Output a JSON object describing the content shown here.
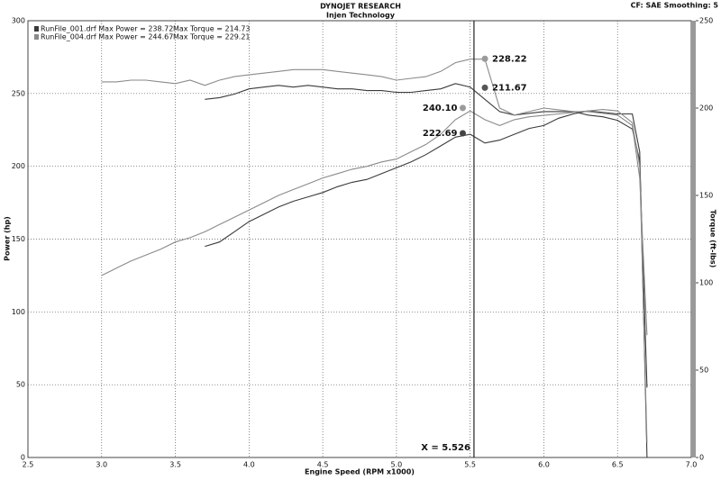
{
  "chart_data": {
    "type": "line",
    "title": "DYNOJET RESEARCH",
    "subtitle": "Injen Technology",
    "corner_note": "CF: SAE  Smoothing: 5",
    "x_label": "Engine Speed (RPM x1000)",
    "y_label": "Power (hp)",
    "y2_label": "Torque (ft-lbs)",
    "x": [
      3.0,
      3.1,
      3.2,
      3.3,
      3.4,
      3.5,
      3.6,
      3.7,
      3.8,
      3.9,
      4.0,
      4.1,
      4.2,
      4.3,
      4.4,
      4.5,
      4.6,
      4.7,
      4.8,
      4.9,
      5.0,
      5.1,
      5.2,
      5.3,
      5.4,
      5.5,
      5.6,
      5.7,
      5.8,
      5.9,
      6.0,
      6.1,
      6.2,
      6.3,
      6.4,
      6.5,
      6.6,
      6.65,
      6.7
    ],
    "series": [
      {
        "name": "RunFile_001.drf Max Power = 238.72",
        "color": "#3a3a3a",
        "axis": "y",
        "values": [
          null,
          null,
          null,
          null,
          null,
          null,
          null,
          145,
          148,
          155,
          162,
          167,
          172,
          176,
          179,
          182,
          186,
          189,
          191,
          195,
          199,
          203,
          208,
          214,
          220,
          222,
          216,
          218,
          222,
          226,
          228,
          233,
          236,
          238,
          237,
          236,
          236,
          210,
          0
        ]
      },
      {
        "name": "Max Torque = 214.73",
        "color": "#3a3a3a",
        "axis": "y2",
        "values": [
          null,
          null,
          null,
          null,
          null,
          null,
          null,
          205,
          206,
          208,
          211,
          212,
          213,
          212,
          213,
          212,
          211,
          211,
          210,
          210,
          209,
          209,
          210,
          211,
          214,
          212,
          205,
          198,
          196,
          197,
          198,
          198,
          198,
          196,
          195,
          193,
          188,
          170,
          40
        ]
      },
      {
        "name": "RunFile_004.drf Max Power = 244.67",
        "color": "#8a8a8a",
        "axis": "y",
        "values": [
          125,
          130,
          135,
          139,
          143,
          148,
          151,
          155,
          160,
          165,
          170,
          175,
          180,
          184,
          188,
          192,
          195,
          198,
          200,
          203,
          205,
          210,
          215,
          222,
          232,
          238,
          232,
          228,
          232,
          234,
          235,
          236,
          237,
          238,
          239,
          238,
          230,
          200,
          10
        ]
      },
      {
        "name": "Max Torque = 229.21",
        "color": "#8a8a8a",
        "axis": "y2",
        "values": [
          215,
          215,
          216,
          216,
          215,
          214,
          216,
          213,
          216,
          218,
          219,
          220,
          221,
          222,
          222,
          222,
          221,
          220,
          219,
          218,
          216,
          217,
          218,
          221,
          226,
          228,
          228,
          200,
          196,
          198,
          200,
          199,
          198,
          198,
          197,
          196,
          190,
          160,
          70
        ]
      }
    ],
    "annotations": [
      {
        "x": 5.6,
        "value": 228.22,
        "label": "228.22",
        "axis": "y2",
        "color": "#9a9a9a"
      },
      {
        "x": 5.6,
        "value": 211.67,
        "label": "211.67",
        "axis": "y2",
        "color": "#555555"
      },
      {
        "x": 5.45,
        "value": 240.1,
        "label": "240.10",
        "axis": "y",
        "color": "#9a9a9a"
      },
      {
        "x": 5.45,
        "value": 222.69,
        "label": "222.69",
        "axis": "y",
        "color": "#444444"
      }
    ],
    "cursor": {
      "value": 5.526,
      "label": "X = 5.526"
    },
    "xlim": [
      2.5,
      7.0
    ],
    "xticks": [
      2.5,
      {
        "value": 3,
        "label": "3.0"
      },
      3.5,
      {
        "value": 4,
        "label": "4.0"
      },
      4.5,
      {
        "value": 5,
        "label": "5.0"
      },
      5.5,
      {
        "value": 6,
        "label": "6.0"
      },
      6.5,
      {
        "value": 7,
        "label": "7.0"
      }
    ],
    "ylim": [
      0,
      300
    ],
    "yticks": [
      0,
      50,
      100,
      150,
      200,
      250,
      300
    ],
    "y2lim": [
      0,
      250
    ],
    "y2ticks": [
      0,
      50,
      100,
      150,
      200,
      250
    ],
    "grid": true
  }
}
